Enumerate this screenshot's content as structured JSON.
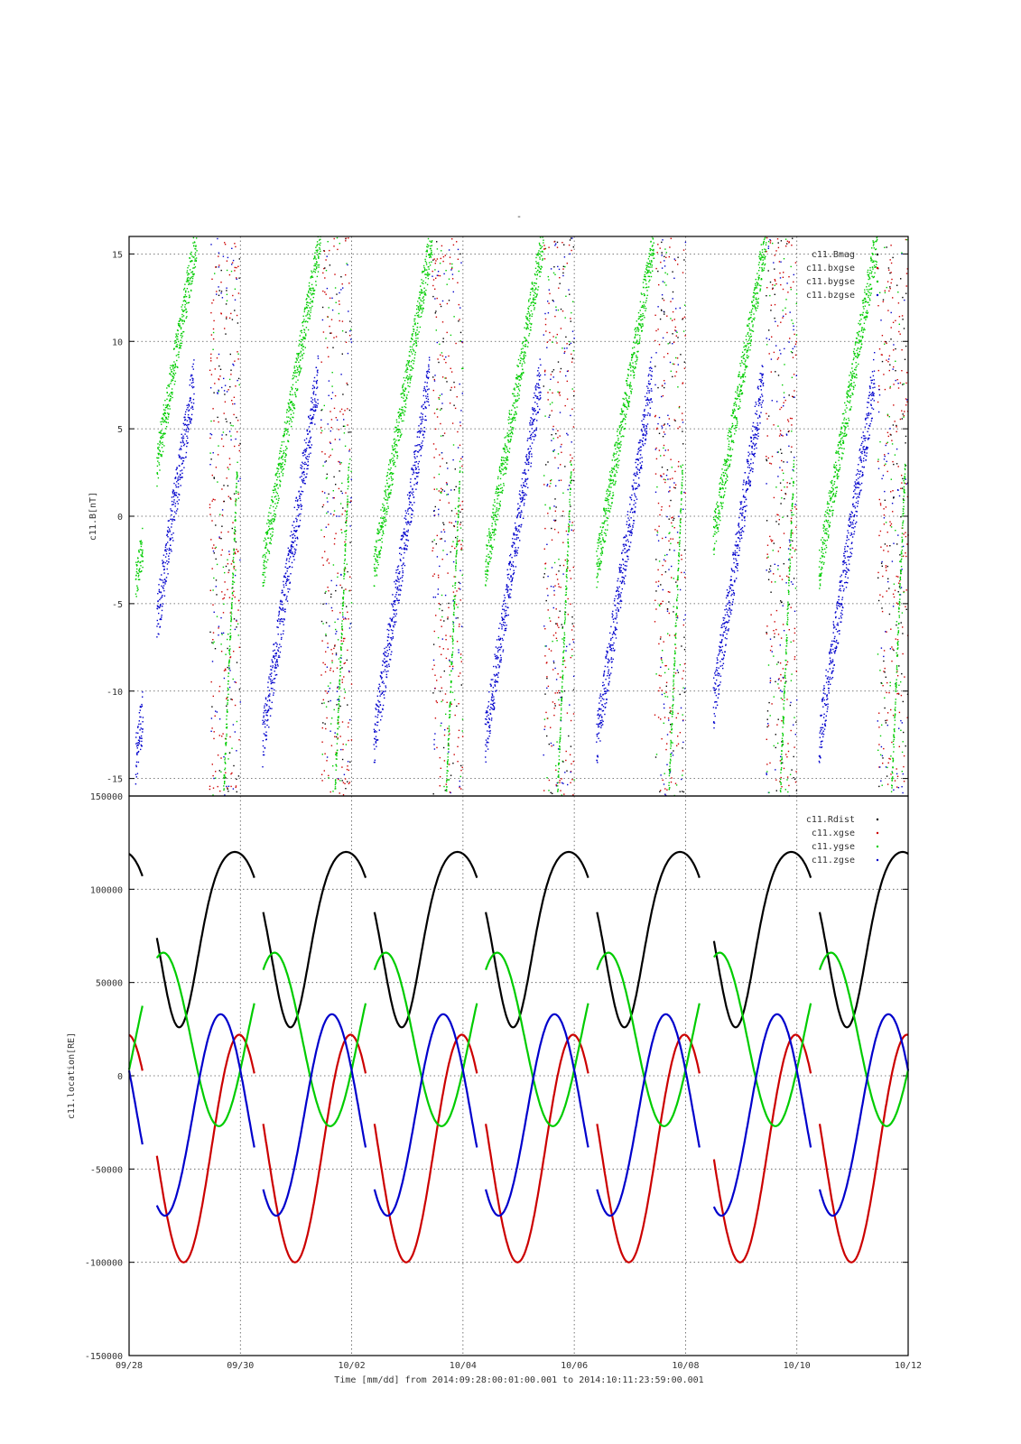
{
  "figure": {
    "title": "-",
    "x_axis_label": "Time [mm/dd]  from 2014:09:28:00:01:00.001  to  2014:10:11:23:59:00.001",
    "x_ticks": [
      "09/28",
      "09/30",
      "10/02",
      "10/04",
      "10/06",
      "10/08",
      "10/10",
      "10/12"
    ],
    "x_range_days": [
      0,
      14
    ]
  },
  "chart_data": [
    {
      "type": "scatter",
      "ylabel": "c11.B[nT]",
      "ylim": [
        -16,
        16
      ],
      "y_ticks": [
        -15,
        -10,
        -5,
        0,
        5,
        10,
        15
      ],
      "grid": true,
      "legend_position": "top-right",
      "series": [
        {
          "name": "c11.Bmag",
          "color": "#000000"
        },
        {
          "name": "c11.bxgse",
          "color": "#cc0000"
        },
        {
          "name": "c11.bygse",
          "color": "#00cc00"
        },
        {
          "name": "c11.bzgse",
          "color": "#0000cc"
        }
      ]
    },
    {
      "type": "line",
      "ylabel": "c11.location[RE]",
      "ylim": [
        -150000,
        150000
      ],
      "y_ticks": [
        -150000,
        -100000,
        -50000,
        0,
        50000,
        100000,
        150000
      ],
      "grid": true,
      "legend_position": "top-right",
      "orbit_period_days": 2.0,
      "data_gaps_days": [
        [
          0.25,
          0.5
        ],
        [
          2.25,
          2.4
        ],
        [
          4.25,
          4.4
        ],
        [
          6.25,
          6.4
        ],
        [
          8.25,
          8.4
        ],
        [
          10.25,
          10.5
        ],
        [
          12.25,
          12.4
        ]
      ],
      "series": [
        {
          "name": "c11.Rdist",
          "color": "#000000",
          "peak": 120000,
          "trough": 26000
        },
        {
          "name": "c11.xgse",
          "color": "#cc0000",
          "min": -100000,
          "max": 22000
        },
        {
          "name": "c11.ygse",
          "color": "#00cc00",
          "min": -27000,
          "max": 66000
        },
        {
          "name": "c11.zgse",
          "color": "#0000cc",
          "min": -75000,
          "max": 33000
        }
      ]
    }
  ]
}
